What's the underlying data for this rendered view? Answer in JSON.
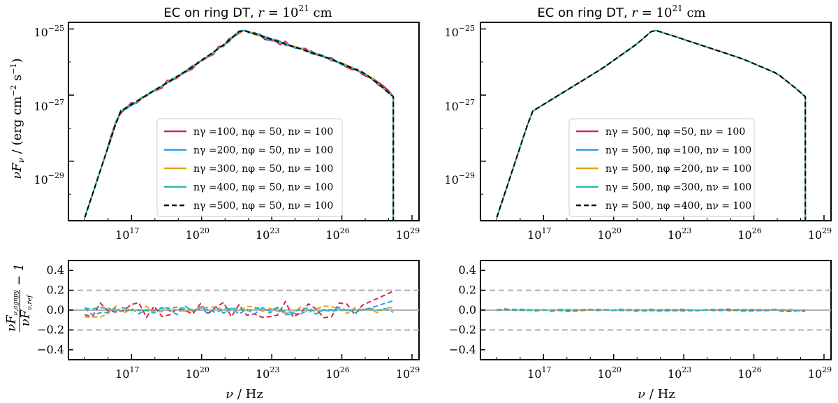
{
  "chart_data": [
    {
      "panel": "top-left",
      "type": "line",
      "title": "EC on ring DT, r = 10²¹ cm",
      "ylabel": "νFν / (erg cm⁻² s⁻¹)",
      "xlabel": "",
      "xscale": "log",
      "yscale": "log",
      "xlim_exp": [
        14.3,
        29.3
      ],
      "ylim_exp": [
        -30.8,
        -24.8
      ],
      "x_ticks": [
        "10¹⁷",
        "10²⁰",
        "10²³",
        "10²⁶",
        "10²⁹"
      ],
      "y_ticks": [
        "10⁻²⁵",
        "10⁻²⁷",
        "10⁻²⁹"
      ],
      "legend_position": "center-right",
      "series": [
        {
          "name": "nγ =100, nφ = 50, nν = 100",
          "color": "#d6244d",
          "dash": "solid",
          "jitter": 0.08
        },
        {
          "name": "nγ =200, nφ = 50, nν = 100",
          "color": "#2a9bea",
          "dash": "solid",
          "jitter": 0.05
        },
        {
          "name": "nγ =300, nφ = 50, nν = 100",
          "color": "#e3a41a",
          "dash": "solid",
          "jitter": 0.03
        },
        {
          "name": "nγ =400, nφ = 50, nν = 100",
          "color": "#27b8ad",
          "dash": "solid",
          "jitter": 0.02
        },
        {
          "name": "nγ =500, nφ = 50, nν = 100",
          "color": "#000000",
          "dash": "dashed",
          "jitter": 0.0
        }
      ]
    },
    {
      "panel": "top-right",
      "type": "line",
      "title": "EC on ring DT, r = 10²¹ cm",
      "ylabel": "",
      "xlabel": "",
      "xscale": "log",
      "yscale": "log",
      "xlim_exp": [
        14.3,
        29.3
      ],
      "ylim_exp": [
        -30.8,
        -24.8
      ],
      "x_ticks": [
        "10¹⁷",
        "10²⁰",
        "10²³",
        "10²⁶",
        "10²⁹"
      ],
      "y_ticks": [
        "10⁻²⁵",
        "10⁻²⁷",
        "10⁻²⁹"
      ],
      "legend_position": "center-right",
      "series": [
        {
          "name": "nγ = 500, nφ =50, nν = 100",
          "color": "#d6244d",
          "dash": "solid",
          "jitter": 0.0
        },
        {
          "name": "nγ = 500, nφ =100, nν = 100",
          "color": "#2a9bea",
          "dash": "solid",
          "jitter": 0.0
        },
        {
          "name": "nγ = 500, nφ =200, nν = 100",
          "color": "#e3a41a",
          "dash": "solid",
          "jitter": 0.0
        },
        {
          "name": "nγ = 500, nφ =300, nν = 100",
          "color": "#27b8ad",
          "dash": "solid",
          "jitter": 0.0
        },
        {
          "name": "nγ = 500, nφ =400, nν = 100",
          "color": "#000000",
          "dash": "dashed",
          "jitter": 0.0
        }
      ]
    },
    {
      "panel": "bottom-left",
      "type": "line",
      "xlabel": "ν / Hz",
      "ylabel": "νFν,agnpy / νFν,ref − 1",
      "xscale": "log",
      "ylim": [
        -0.5,
        0.5
      ],
      "x_ticks": [
        "10¹⁷",
        "10²⁰",
        "10²³",
        "10²⁶",
        "10²⁹"
      ],
      "y_ticks": [
        "0.4",
        "0.2",
        "0.0",
        "−0.2",
        "−0.4"
      ],
      "reference_lines": [
        0.2,
        0.0,
        -0.2
      ],
      "series_amplitude": [
        0.09,
        0.05,
        0.04,
        0.03
      ]
    },
    {
      "panel": "bottom-right",
      "type": "line",
      "xlabel": "ν / Hz",
      "ylabel": "",
      "xscale": "log",
      "ylim": [
        -0.5,
        0.5
      ],
      "x_ticks": [
        "10¹⁷",
        "10²⁰",
        "10²³",
        "10²⁶",
        "10²⁹"
      ],
      "y_ticks": [
        "0.4",
        "0.2",
        "0.0",
        "−0.2",
        "−0.4"
      ],
      "reference_lines": [
        0.2,
        0.0,
        -0.2
      ],
      "series_amplitude": [
        0.012,
        0.01,
        0.008,
        0.006
      ]
    }
  ],
  "sed_curve": {
    "log_nu": [
      15.0,
      16.5,
      18.0,
      19.5,
      21.0,
      21.7,
      22.5,
      24.0,
      25.5,
      27.0,
      27.8,
      28.2,
      28.2
    ],
    "log_nuFnu": [
      -30.7,
      -27.5,
      -26.85,
      -26.2,
      -25.45,
      -25.02,
      -25.2,
      -25.55,
      -25.9,
      -26.35,
      -26.8,
      -27.05,
      -31.0
    ]
  },
  "colors": {
    "red": "#d6244d",
    "blue": "#2a9bea",
    "orange": "#e3a41a",
    "teal": "#27b8ad",
    "ref_line": "#b0b0b0"
  }
}
